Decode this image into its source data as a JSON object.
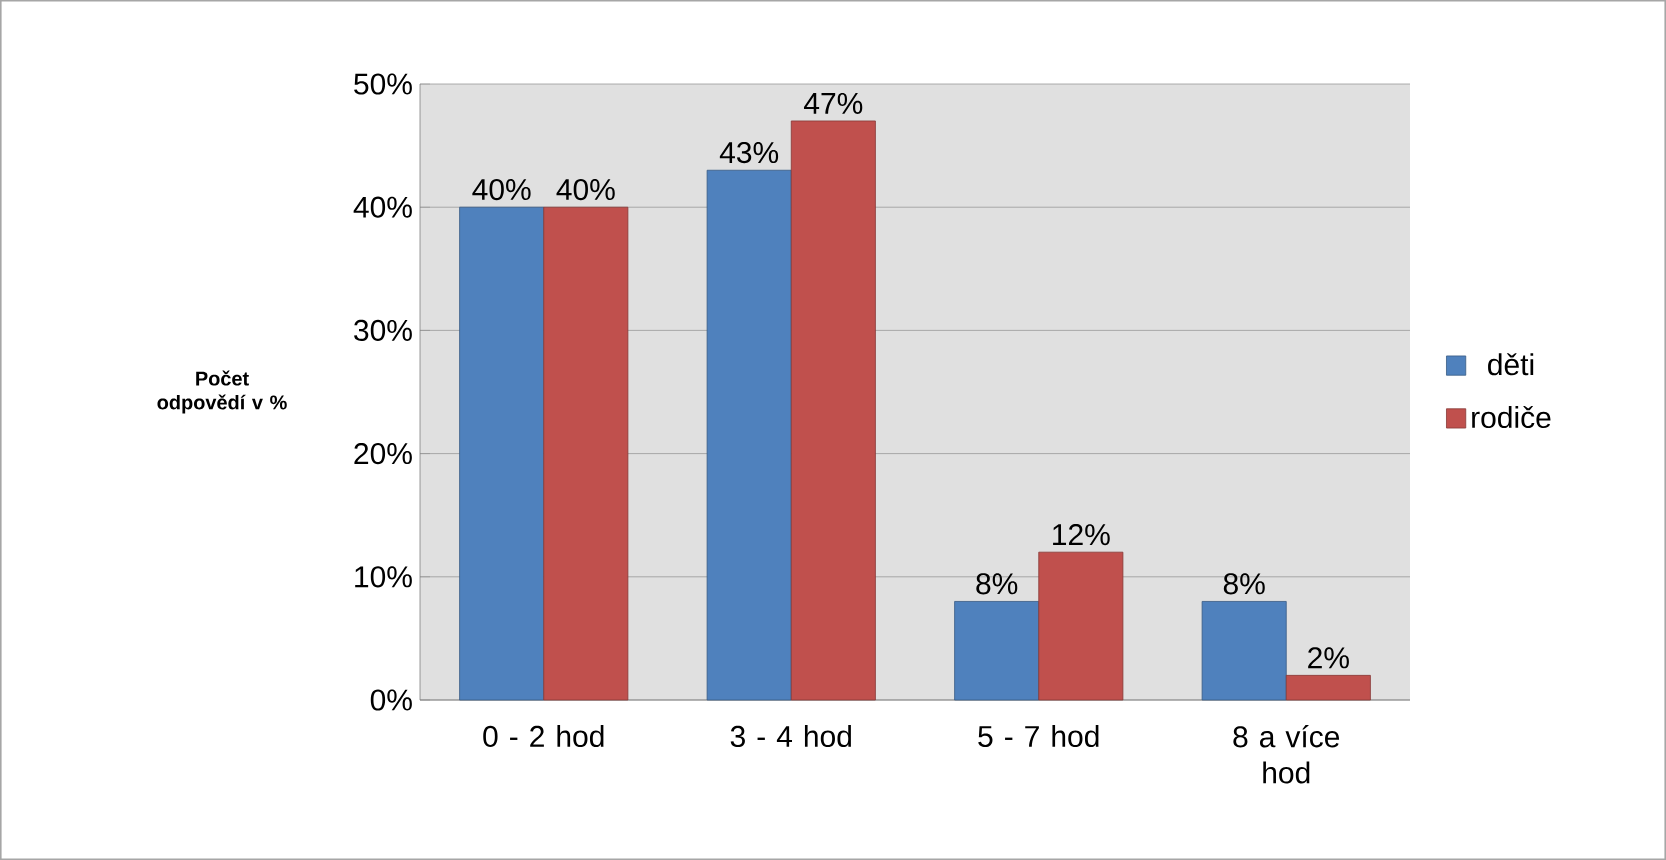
{
  "chart_data": {
    "type": "bar",
    "ylabel": "Počet odpovědí v %",
    "categories": [
      "0 - 2 hod",
      "3 - 4 hod",
      "5 - 7 hod",
      "8 a více hod"
    ],
    "series": [
      {
        "name": "děti",
        "color": "#4f81bd",
        "values": [
          40,
          43,
          8,
          8
        ],
        "value_labels": [
          "40%",
          "43%",
          "8%",
          "8%"
        ]
      },
      {
        "name": "rodiče",
        "color": "#c0504d",
        "values": [
          40,
          47,
          12,
          2
        ],
        "value_labels": [
          "40%",
          "47%",
          "12%",
          "2%"
        ]
      }
    ],
    "ylim": [
      0,
      50
    ],
    "yticks": [
      {
        "value": 0,
        "label": "0%"
      },
      {
        "value": 10,
        "label": "10%"
      },
      {
        "value": 20,
        "label": "20%"
      },
      {
        "value": 30,
        "label": "30%"
      },
      {
        "value": 40,
        "label": "40%"
      },
      {
        "value": 50,
        "label": "50%"
      }
    ],
    "grid": "y",
    "legend": "right"
  }
}
